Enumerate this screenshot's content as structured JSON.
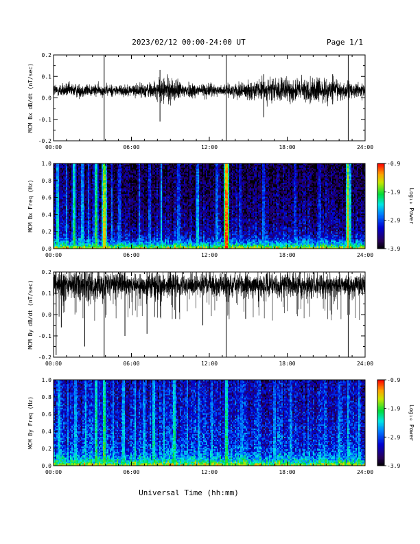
{
  "header": {
    "title": "2023/02/12  00:00-24:00 UT",
    "page": "Page 1/1"
  },
  "footer": {
    "xlabel": "Universal Time (hh:mm)"
  },
  "chart_data": [
    {
      "type": "line",
      "id": "bx-dbdt",
      "ylabel": "MCM Bx dB/dt (nT/sec)",
      "xlim": [
        0,
        24
      ],
      "ylim": [
        -0.2,
        0.2
      ],
      "yticks": [
        -0.2,
        -0.1,
        0.0,
        0.1,
        0.2
      ],
      "ytick_labels": [
        "-0.2",
        "-0.1",
        "0.0",
        "0.1",
        "0.2"
      ],
      "xticks": [
        0,
        6,
        12,
        18,
        24
      ],
      "xtick_labels": [
        "00:00",
        "06:00",
        "12:00",
        "18:00",
        "24:00"
      ],
      "baseline": 0.035,
      "envelope_x": [
        0,
        2,
        4,
        6,
        8,
        8.6,
        10,
        12,
        13,
        14,
        16,
        17,
        18,
        19,
        20,
        22,
        23,
        24
      ],
      "envelope_amp": [
        0.03,
        0.03,
        0.025,
        0.025,
        0.04,
        0.06,
        0.035,
        0.03,
        0.02,
        0.03,
        0.045,
        0.055,
        0.05,
        0.05,
        0.055,
        0.045,
        0.035,
        0.03
      ],
      "spikes": [
        {
          "x": 3.9,
          "y0": -0.2,
          "y1": 0.2
        },
        {
          "x": 13.3,
          "y0": -0.2,
          "y1": 0.2
        },
        {
          "x": 22.7,
          "y0": -0.2,
          "y1": 0.2
        },
        {
          "x": 8.2,
          "y0": -0.11,
          "y1": 0.13
        },
        {
          "x": 16.2,
          "y0": -0.09,
          "y1": 0.11
        },
        {
          "x": 21.5,
          "y0": -0.03,
          "y1": 0.11
        }
      ]
    },
    {
      "type": "heatmap",
      "id": "bx-spec",
      "ylabel": "MCM Bx Freq (Hz)",
      "xlim": [
        0,
        24
      ],
      "ylim": [
        0,
        1.0
      ],
      "yticks": [
        0.0,
        0.2,
        0.4,
        0.6,
        0.8,
        1.0
      ],
      "ytick_labels": [
        "0.0",
        "0.2",
        "0.4",
        "0.6",
        "0.8",
        "1.0"
      ],
      "xticks": [
        0,
        6,
        12,
        18,
        24
      ],
      "xtick_labels": [
        "00:00",
        "06:00",
        "12:00",
        "18:00",
        "24:00"
      ],
      "colorbar": {
        "label": "Log₁₀ Power",
        "range": [
          -3.9,
          -0.9
        ],
        "ticks": [
          -0.9,
          -1.9,
          -2.9,
          -3.9
        ],
        "tick_labels": [
          "-0.9",
          "-1.9",
          "-2.9",
          "-3.9"
        ]
      },
      "background_level": -3.7,
      "floor_level": -2.3,
      "bursts": [
        {
          "x": 0.3,
          "level": -2.2
        },
        {
          "x": 1.0,
          "level": -2.5
        },
        {
          "x": 1.6,
          "level": -2.0
        },
        {
          "x": 2.2,
          "level": -2.4
        },
        {
          "x": 2.7,
          "level": -2.6
        },
        {
          "x": 3.3,
          "level": -1.9
        },
        {
          "x": 3.9,
          "level": -1.4
        },
        {
          "x": 4.5,
          "level": -2.6
        },
        {
          "x": 5.1,
          "level": -2.7
        },
        {
          "x": 6.6,
          "level": -2.6
        },
        {
          "x": 7.4,
          "level": -2.7
        },
        {
          "x": 8.3,
          "level": -2.3
        },
        {
          "x": 9.6,
          "level": -2.7
        },
        {
          "x": 11.1,
          "level": -2.4
        },
        {
          "x": 12.6,
          "level": -2.6
        },
        {
          "x": 13.3,
          "level": -1.0
        },
        {
          "x": 14.4,
          "level": -2.8
        },
        {
          "x": 16.2,
          "level": -2.7
        },
        {
          "x": 18.6,
          "level": -2.8
        },
        {
          "x": 20.5,
          "level": -2.8
        },
        {
          "x": 22.7,
          "level": -1.3
        }
      ]
    },
    {
      "type": "line",
      "id": "by-dbdt",
      "ylabel": "MCM By dB/dt (nT/sec)",
      "xlim": [
        0,
        24
      ],
      "ylim": [
        -0.2,
        0.2
      ],
      "yticks": [
        -0.2,
        -0.1,
        0.0,
        0.1,
        0.2
      ],
      "ytick_labels": [
        "-0.2",
        "-0.1",
        "0.0",
        "0.1",
        "0.2"
      ],
      "xticks": [
        0,
        6,
        12,
        18,
        24
      ],
      "xtick_labels": [
        "00:00",
        "06:00",
        "12:00",
        "18:00",
        "24:00"
      ],
      "baseline": 0.14,
      "envelope_x": [
        0,
        2,
        4,
        6,
        8,
        10,
        12,
        14,
        16,
        18,
        20,
        22,
        24
      ],
      "envelope_amp": [
        0.06,
        0.07,
        0.06,
        0.05,
        0.06,
        0.05,
        0.05,
        0.05,
        0.05,
        0.05,
        0.05,
        0.05,
        0.05
      ],
      "spikes": [
        {
          "x": 0.2,
          "y0": -0.19,
          "y1": 0.2
        },
        {
          "x": 0.6,
          "y0": -0.06,
          "y1": 0.2
        },
        {
          "x": 2.4,
          "y0": -0.15,
          "y1": 0.2
        },
        {
          "x": 3.9,
          "y0": -0.2,
          "y1": 0.2
        },
        {
          "x": 5.5,
          "y0": -0.1,
          "y1": 0.2
        },
        {
          "x": 7.2,
          "y0": -0.09,
          "y1": 0.2
        },
        {
          "x": 9.4,
          "y0": -0.02,
          "y1": 0.2
        },
        {
          "x": 11.5,
          "y0": -0.05,
          "y1": 0.2
        },
        {
          "x": 13.3,
          "y0": -0.2,
          "y1": 0.2
        },
        {
          "x": 14.8,
          "y0": -0.02,
          "y1": 0.2
        },
        {
          "x": 22.7,
          "y0": -0.2,
          "y1": 0.2
        }
      ]
    },
    {
      "type": "heatmap",
      "id": "by-spec",
      "ylabel": "MCM By Freq (Hz)",
      "xlim": [
        0,
        24
      ],
      "ylim": [
        0,
        1.0
      ],
      "yticks": [
        0.0,
        0.2,
        0.4,
        0.6,
        0.8,
        1.0
      ],
      "ytick_labels": [
        "0.0",
        "0.2",
        "0.4",
        "0.6",
        "0.8",
        "1.0"
      ],
      "xticks": [
        0,
        6,
        12,
        18,
        24
      ],
      "xtick_labels": [
        "00:00",
        "06:00",
        "12:00",
        "18:00",
        "24:00"
      ],
      "colorbar": {
        "label": "Log₁₀ Power",
        "range": [
          -3.9,
          -0.9
        ],
        "ticks": [
          -0.9,
          -1.9,
          -2.9,
          -3.9
        ],
        "tick_labels": [
          "-0.9",
          "-1.9",
          "-2.9",
          "-3.9"
        ]
      },
      "background_level": -3.3,
      "floor_level": -2.4,
      "bursts": [
        {
          "x": 0.4,
          "level": -2.3
        },
        {
          "x": 1.1,
          "level": -2.5
        },
        {
          "x": 1.7,
          "level": -2.4
        },
        {
          "x": 2.5,
          "level": -2.3
        },
        {
          "x": 3.3,
          "level": -2.0
        },
        {
          "x": 3.9,
          "level": -1.9
        },
        {
          "x": 4.6,
          "level": -2.4
        },
        {
          "x": 5.4,
          "level": -2.3
        },
        {
          "x": 6.3,
          "level": -2.3
        },
        {
          "x": 7.0,
          "level": -2.4
        },
        {
          "x": 7.7,
          "level": -2.2
        },
        {
          "x": 8.5,
          "level": -2.3
        },
        {
          "x": 9.3,
          "level": -2.1
        },
        {
          "x": 10.3,
          "level": -2.4
        },
        {
          "x": 11.2,
          "level": -2.5
        },
        {
          "x": 12.2,
          "level": -2.4
        },
        {
          "x": 13.3,
          "level": -2.0
        },
        {
          "x": 14.5,
          "level": -2.6
        },
        {
          "x": 15.8,
          "level": -2.6
        },
        {
          "x": 17.0,
          "level": -2.5
        },
        {
          "x": 18.3,
          "level": -2.5
        },
        {
          "x": 19.6,
          "level": -2.6
        },
        {
          "x": 20.9,
          "level": -2.6
        },
        {
          "x": 22.0,
          "level": -2.5
        },
        {
          "x": 22.7,
          "level": -2.3
        },
        {
          "x": 23.5,
          "level": -2.4
        }
      ]
    }
  ]
}
